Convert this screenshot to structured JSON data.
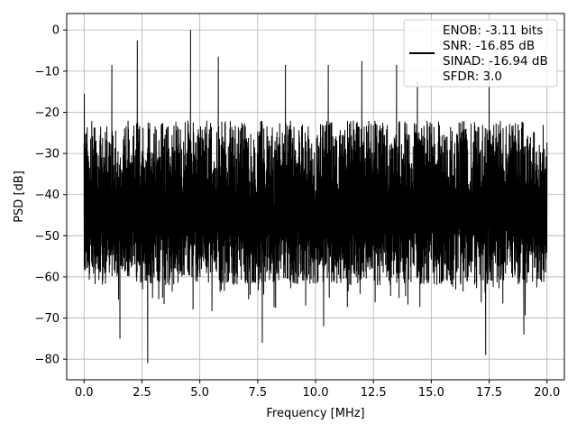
{
  "chart_data": {
    "type": "line",
    "title": "",
    "xlabel": "Frequency [MHz]",
    "ylabel": "PSD [dB]",
    "xlim": [
      -0.75,
      20.75
    ],
    "ylim": [
      -85,
      4
    ],
    "xticks": [
      0.0,
      2.5,
      5.0,
      7.5,
      10.0,
      12.5,
      15.0,
      17.5,
      20.0
    ],
    "xtick_labels": [
      "0.0",
      "2.5",
      "5.0",
      "7.5",
      "10.0",
      "12.5",
      "15.0",
      "17.5",
      "20.0"
    ],
    "yticks": [
      0,
      -10,
      -20,
      -30,
      -40,
      -50,
      -60,
      -70,
      -80
    ],
    "ytick_labels": [
      "0",
      "−10",
      "−20",
      "−30",
      "−40",
      "−50",
      "−60",
      "−70",
      "−80"
    ],
    "grid": true,
    "legend_position": "top-right",
    "line_color": "#000000",
    "legend_entries": [
      "ENOB: -3.11 bits",
      "SNR: -16.85 dB",
      "SINAD: -16.94 dB",
      "SFDR: 3.0"
    ],
    "series": [
      {
        "x": [
          0.0,
          0.01,
          1.2,
          1.55,
          2.3,
          2.75,
          4.6,
          5.8,
          7.7,
          8.7,
          10.35,
          10.55,
          12.0,
          13.5,
          14.4,
          17.35,
          17.5,
          19.0,
          20.0
        ],
        "y": [
          -35,
          -15.5,
          -8.5,
          -75,
          -2.5,
          -81,
          0,
          -6.5,
          -76,
          -8.5,
          -72,
          -8.5,
          -7.5,
          -8.5,
          -12.5,
          -79,
          -7.5,
          -74,
          -32
        ]
      }
    ]
  }
}
